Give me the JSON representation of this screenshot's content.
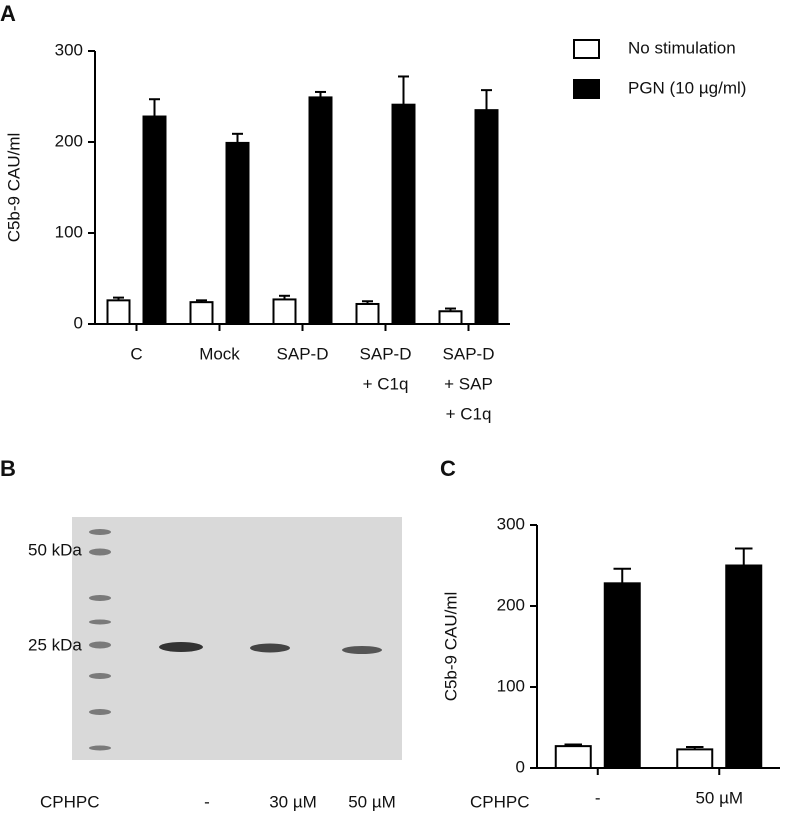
{
  "chart_data": [
    {
      "type": "bar",
      "panel": "A",
      "y_label": "C5b-9 CAU/ml",
      "categories": [
        [
          "C"
        ],
        [
          "Mock"
        ],
        [
          "SAP-D"
        ],
        [
          "SAP-D",
          "+ C1q"
        ],
        [
          "SAP-D",
          "+ SAP",
          "+ C1q"
        ]
      ],
      "series": [
        {
          "name": "No stimulation",
          "color": "#ffffff",
          "values": [
            26,
            24,
            27,
            22,
            14
          ],
          "errors": [
            3,
            2,
            4,
            3,
            3
          ]
        },
        {
          "name": "PGN (10 µg/ml)",
          "color": "#000000",
          "values": [
            228,
            199,
            249,
            241,
            235
          ],
          "errors": [
            19,
            10,
            6,
            31,
            22
          ]
        }
      ],
      "ylim": [
        0,
        300
      ],
      "yticks": [
        0,
        100,
        200,
        300
      ],
      "legend": "top-right"
    },
    {
      "type": "gel",
      "panel": "B",
      "markers": [
        "50 kDa",
        "25 kDa"
      ],
      "x_label": "CPHPC",
      "categories": [
        "-",
        "30 µM",
        "50 µM"
      ]
    },
    {
      "type": "bar",
      "panel": "C",
      "y_label": "C5b-9 CAU/ml",
      "x_label": "CPHPC",
      "categories": [
        "-",
        "50 µM"
      ],
      "series": [
        {
          "name": null,
          "color": "#ffffff",
          "values": [
            27,
            23
          ],
          "errors": [
            2,
            3
          ]
        },
        {
          "name": null,
          "color": "#000000",
          "values": [
            228,
            250
          ],
          "errors": [
            18,
            21
          ]
        }
      ],
      "ylim": [
        0,
        300
      ],
      "yticks": [
        0,
        100,
        200,
        300
      ]
    }
  ]
}
